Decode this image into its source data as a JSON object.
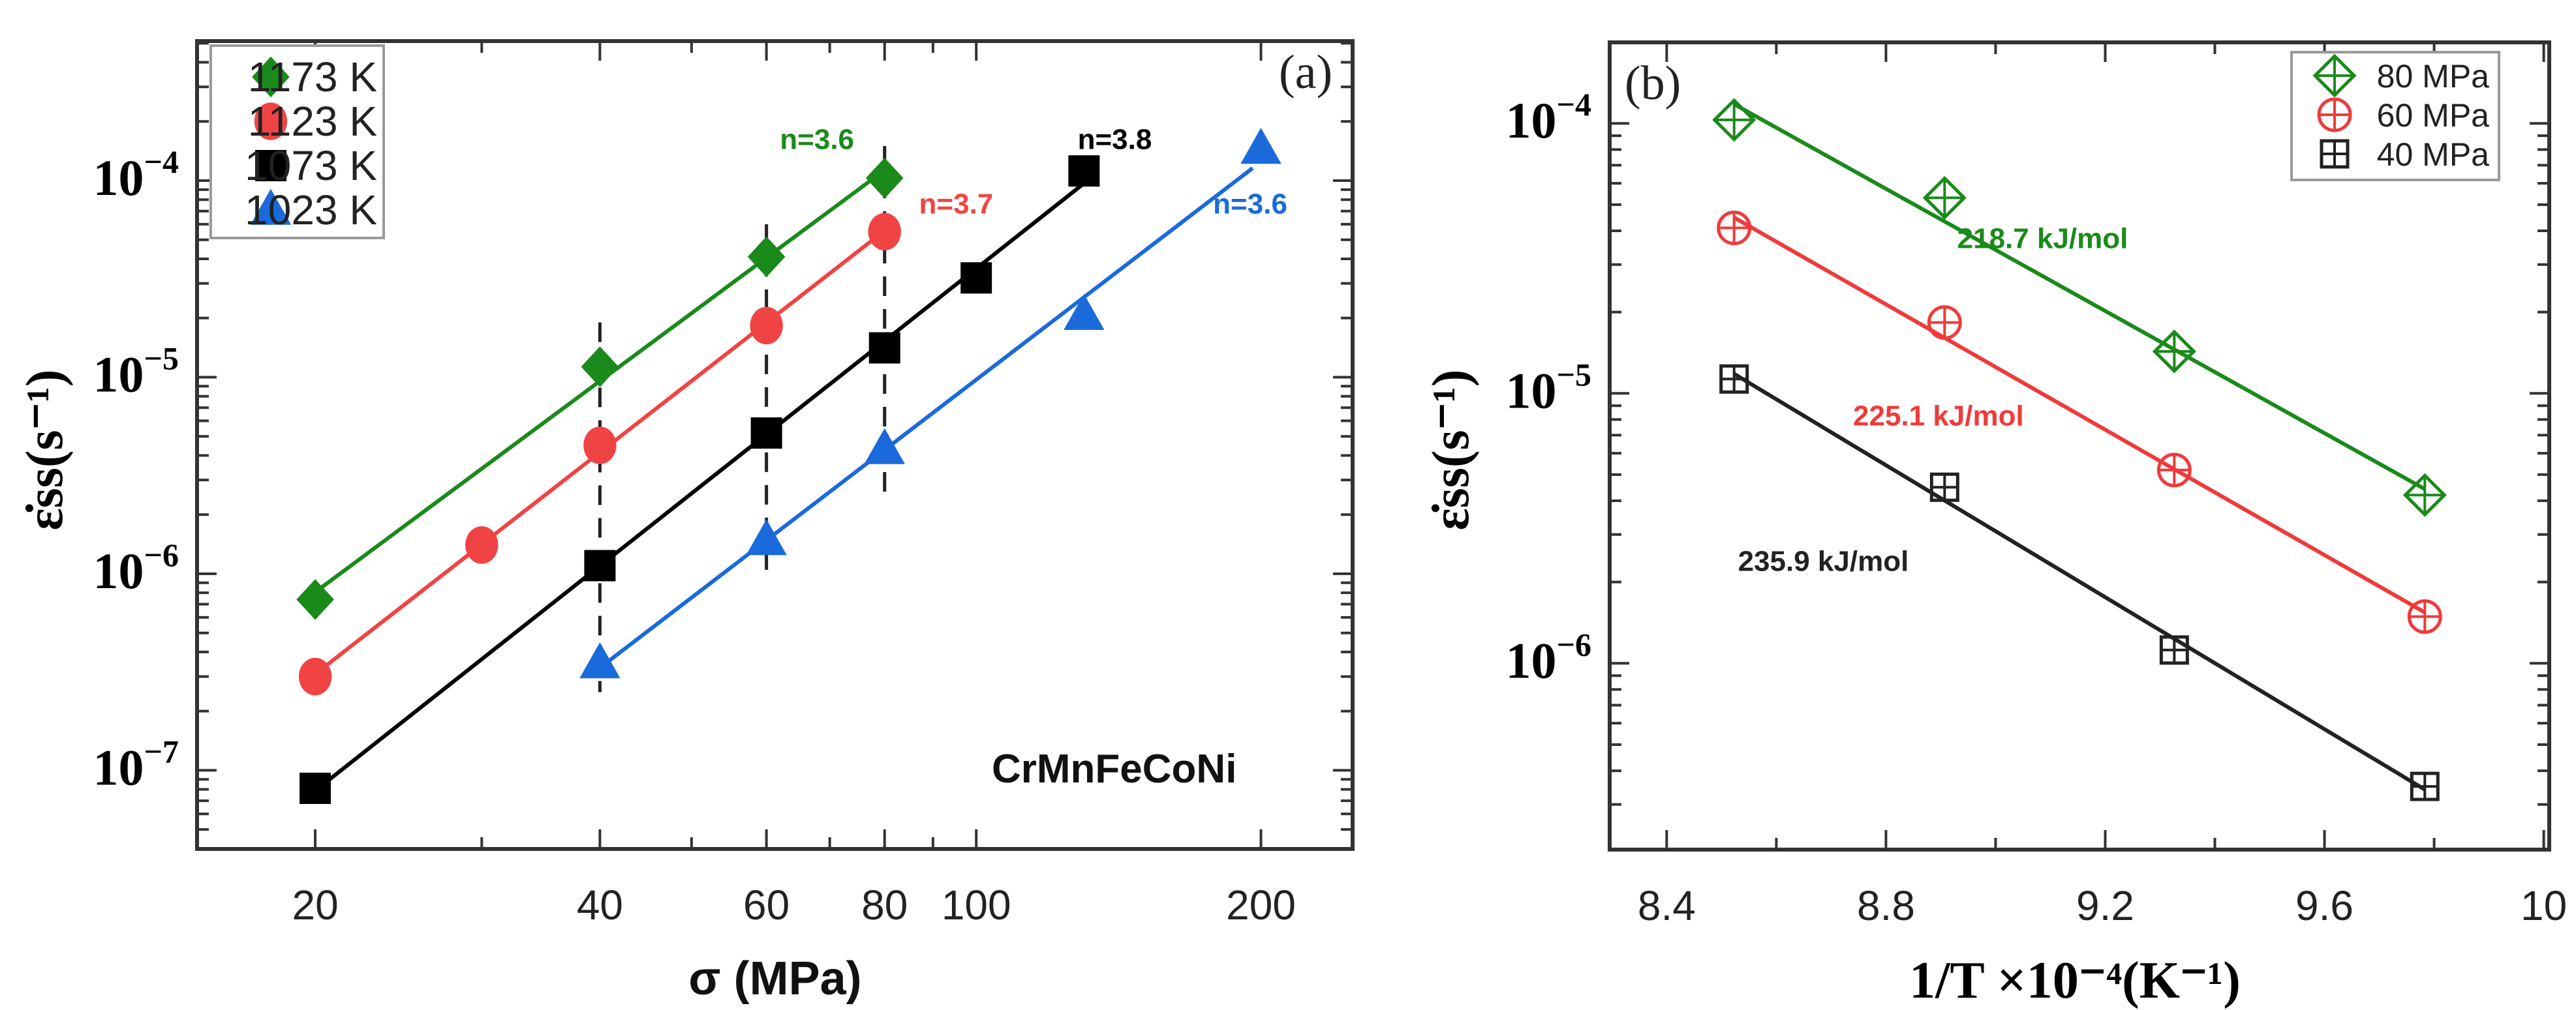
{
  "chart_data": [
    {
      "id": "a",
      "type": "scatter",
      "panel_label": "(a)",
      "title": "",
      "xlabel": "σ (MPa)",
      "ylabel": "ε̇ss(s⁻¹)",
      "xscale": "log",
      "yscale": "log",
      "xlim": [
        15.0,
        250.0
      ],
      "ylim_log10": [
        -7.4,
        -3.29
      ],
      "x_ticks": [
        20,
        40,
        60,
        80,
        100,
        200
      ],
      "x_tick_labels": [
        "20",
        "40",
        "60",
        "80",
        "100",
        "200"
      ],
      "x_minor_ticks": [
        30,
        50,
        70,
        90
      ],
      "y_ticks_log10": [
        -4,
        -5,
        -6,
        -7
      ],
      "y_tick_labels": [
        {
          "base": "10",
          "exp": "−4"
        },
        {
          "base": "10",
          "exp": "−5"
        },
        {
          "base": "10",
          "exp": "−6"
        },
        {
          "base": "10",
          "exp": "−7"
        }
      ],
      "legend": {
        "position": "top-left"
      },
      "annotation_material": "CrMnFeCoNi",
      "dashed_verticals": [
        {
          "x": 40,
          "y_from": 2.5e-07,
          "y_to": 1.9e-05
        },
        {
          "x": 60,
          "y_from": 9e-07,
          "y_to": 6e-05
        },
        {
          "x": 80,
          "y_from": 2.4e-06,
          "y_to": 0.00015
        }
      ],
      "series": [
        {
          "name": "1173 K",
          "marker": "diamond",
          "color": "#1a8a1a",
          "x": [
            20,
            40,
            60,
            80
          ],
          "y": [
            7.4e-07,
            1.13e-05,
            4.1e-05,
            0.000103
          ],
          "fit_range": [
            20,
            80
          ],
          "n_label": "n=3.6",
          "n_label_at": [
            62,
            0.000145
          ]
        },
        {
          "name": "1123 K",
          "marker": "circle",
          "color": "#f04444",
          "x": [
            20,
            30,
            40,
            60,
            80
          ],
          "y": [
            3e-07,
            1.4e-06,
            4.5e-06,
            1.83e-05,
            5.5e-05
          ],
          "fit_range": [
            20,
            80
          ],
          "n_label": "n=3.7",
          "n_label_at": [
            87,
            6.8e-05
          ]
        },
        {
          "name": "1073 K",
          "marker": "square",
          "color": "#000000",
          "x": [
            20,
            40,
            60,
            80,
            100,
            130
          ],
          "y": [
            8.1e-08,
            1.1e-06,
            5.2e-06,
            1.41e-05,
            3.2e-05,
            0.000112
          ],
          "fit_range": [
            20,
            130
          ],
          "n_label": "n=3.8",
          "n_label_at": [
            128,
            0.000145
          ]
        },
        {
          "name": "1023 K",
          "marker": "triangle",
          "color": "#1a6adb",
          "x": [
            40,
            60,
            80,
            130,
            200
          ],
          "y": [
            3.5e-07,
            1.48e-06,
            4.3e-06,
            2.07e-05,
            0.000145
          ],
          "fit_range": [
            40,
            196
          ],
          "n_label": "n=3.6",
          "n_label_at": [
            178,
            6.8e-05
          ]
        }
      ]
    },
    {
      "id": "b",
      "type": "scatter",
      "panel_label": "(b)",
      "title": "",
      "xlabel": "1/T ×10⁻⁴(K⁻¹)",
      "ylabel": "ε̇ss(s⁻¹)",
      "xscale": "linear",
      "yscale": "log",
      "xlim": [
        8.296,
        10.01
      ],
      "ylim_log10": [
        -6.69,
        -3.7
      ],
      "x_ticks": [
        8.4,
        8.8,
        9.2,
        9.6,
        10.0
      ],
      "x_tick_labels": [
        "8.4",
        "8.8",
        "9.2",
        "9.6",
        "10"
      ],
      "x_minor_ticks": [
        8.6,
        9.0,
        9.4,
        9.8
      ],
      "y_ticks_log10": [
        -4,
        -5,
        -6
      ],
      "y_tick_labels": [
        {
          "base": "10",
          "exp": "−4"
        },
        {
          "base": "10",
          "exp": "−5"
        },
        {
          "base": "10",
          "exp": "−6"
        }
      ],
      "legend": {
        "position": "top-right"
      },
      "series": [
        {
          "name": "80 MPa",
          "marker": "diamond-cross",
          "color": "#1a8a1a",
          "x": [
            8.523,
            8.907,
            9.326,
            9.783
          ],
          "y": [
            0.000103,
            5.3e-05,
            1.43e-05,
            4.2e-06
          ],
          "activation_energy_label": "218.7 kJ/mol",
          "label_at": [
            8.93,
            3.45e-05
          ]
        },
        {
          "name": "60 MPa",
          "marker": "circle-cross",
          "color": "#f03a3a",
          "x": [
            8.523,
            8.907,
            9.326,
            9.783
          ],
          "y": [
            4.1e-05,
            1.83e-05,
            5.2e-06,
            1.49e-06
          ],
          "activation_energy_label": "225.1 kJ/mol",
          "label_at": [
            8.74,
            7.6e-06
          ]
        },
        {
          "name": "40 MPa",
          "marker": "square-cross",
          "color": "#222222",
          "x": [
            8.523,
            8.907,
            9.326,
            9.783
          ],
          "y": [
            1.13e-05,
            4.49e-06,
            1.12e-06,
            3.5e-07
          ],
          "activation_energy_label": "235.9 kJ/mol",
          "label_at": [
            8.53,
            2.2e-06
          ]
        }
      ]
    }
  ]
}
